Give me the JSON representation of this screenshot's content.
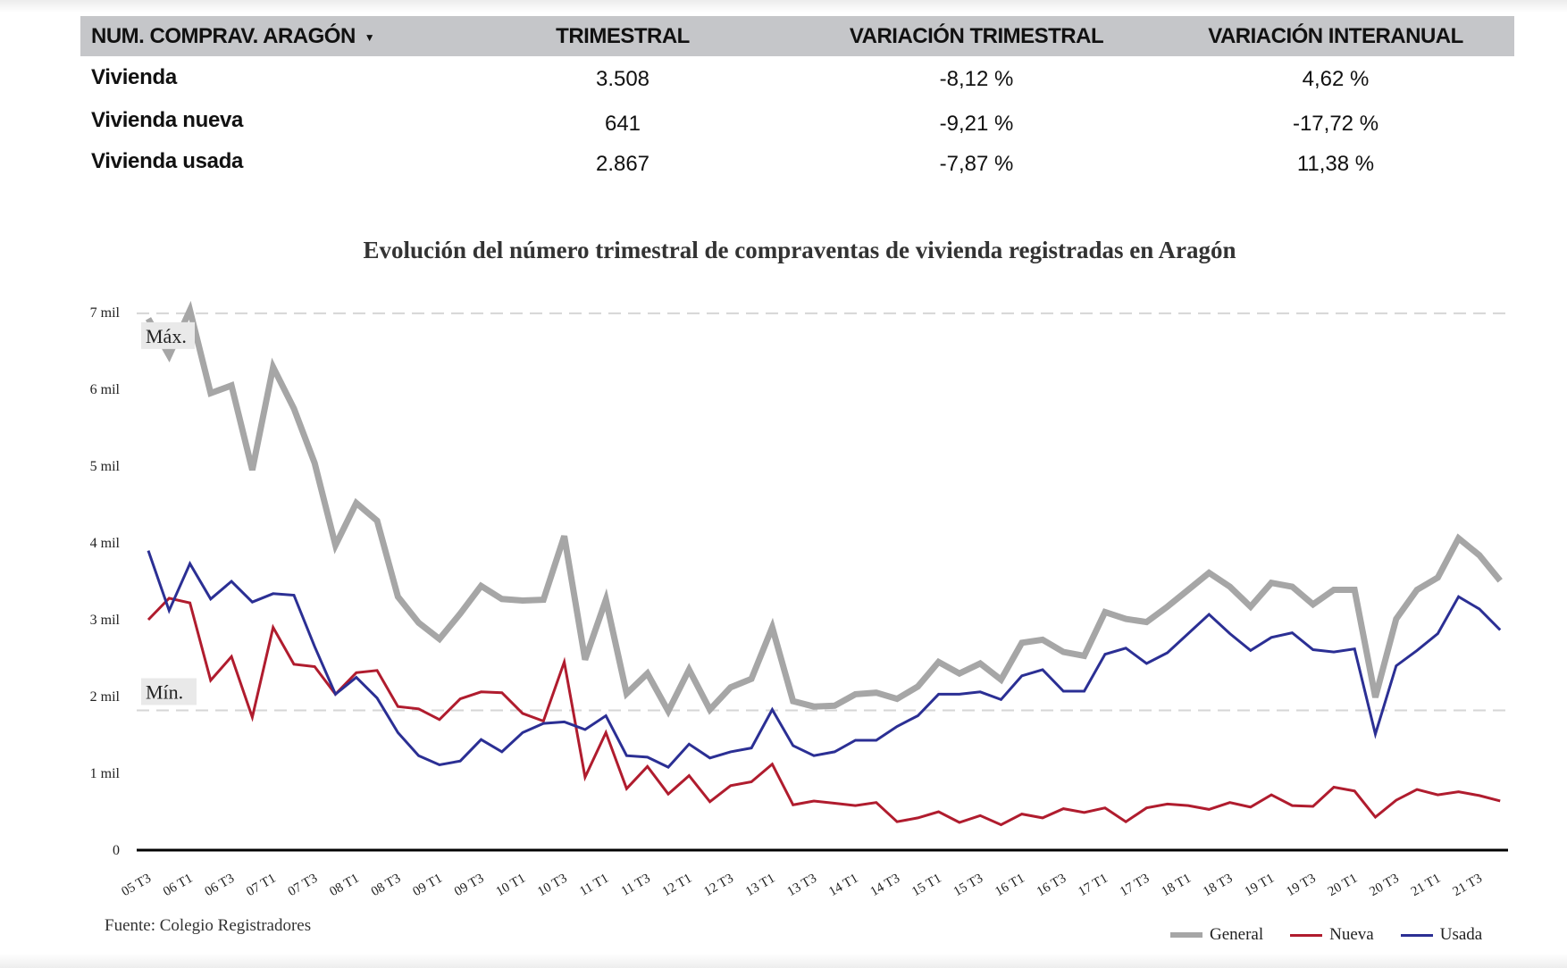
{
  "table": {
    "headers": [
      "NUM. COMPRAV. ARAGÓN",
      "TRIMESTRAL",
      "VARIACIÓN TRIMESTRAL",
      "VARIACIÓN INTERANUAL"
    ],
    "dropdown_icon": "caret-down-icon",
    "rows": [
      {
        "label": "Vivienda",
        "trimestral": "3.508",
        "var_trim": "-8,12 %",
        "var_inter": "4,62 %"
      },
      {
        "label": "Vivienda nueva",
        "trimestral": "641",
        "var_trim": "-9,21 %",
        "var_inter": "-17,72 %"
      },
      {
        "label": "Vivienda usada",
        "trimestral": "2.867",
        "var_trim": "-7,87 %",
        "var_inter": "11,38 %"
      }
    ]
  },
  "source": "Fuente: Colegio Registradores",
  "chart_data": {
    "type": "line",
    "title": "Evolución del número trimestral de compraventas de vivienda registradas en Aragón",
    "xlabel": "",
    "ylabel": "",
    "ylim": [
      0,
      7000
    ],
    "y_ticks": [
      {
        "v": 0,
        "label": "0"
      },
      {
        "v": 1000,
        "label": "1 mil"
      },
      {
        "v": 2000,
        "label": "2 mil"
      },
      {
        "v": 3000,
        "label": "3 mil"
      },
      {
        "v": 4000,
        "label": "4 mil"
      },
      {
        "v": 5000,
        "label": "5 mil"
      },
      {
        "v": 6000,
        "label": "6 mil"
      },
      {
        "v": 7000,
        "label": "7 mil"
      }
    ],
    "x_tick_labels": [
      "05 T3",
      "06 T1",
      "06 T3",
      "07 T1",
      "07 T3",
      "08 T1",
      "08 T3",
      "09 T1",
      "09 T3",
      "10 T1",
      "10 T3",
      "11 T1",
      "11 T3",
      "12 T1",
      "12 T3",
      "13 T1",
      "13 T3",
      "14 T1",
      "14 T3",
      "15 T1",
      "15 T3",
      "16 T1",
      "16 T3",
      "17 T1",
      "17 T3",
      "18 T1",
      "18 T3",
      "19 T1",
      "19 T3",
      "20 T1",
      "20 T3",
      "21 T1",
      "21 T3"
    ],
    "reference_lines": [
      {
        "label": "Máx.",
        "value": 6990
      },
      {
        "label": "Mín.",
        "value": 1820
      }
    ],
    "grid": false,
    "legend": "bottom-right",
    "series": [
      {
        "name": "General",
        "color": "#a6a6a6",
        "values": [
          6920,
          6440,
          7030,
          5950,
          6050,
          4950,
          6290,
          5750,
          5040,
          3970,
          4520,
          4290,
          3300,
          2960,
          2750,
          3080,
          3440,
          3270,
          3250,
          3260,
          4090,
          2480,
          3260,
          2040,
          2300,
          1810,
          2350,
          1830,
          2120,
          2230,
          2900,
          1940,
          1870,
          1880,
          2030,
          2050,
          1970,
          2130,
          2450,
          2300,
          2430,
          2220,
          2700,
          2740,
          2580,
          2530,
          3100,
          3010,
          2970,
          3170,
          3390,
          3610,
          3430,
          3170,
          3480,
          3430,
          3200,
          3390,
          3390,
          1990,
          3010,
          3390,
          3550,
          4060,
          3840,
          3508
        ]
      },
      {
        "name": "Nueva",
        "color": "#b01c2e",
        "values": [
          3000,
          3280,
          3220,
          2210,
          2520,
          1730,
          2900,
          2420,
          2390,
          2030,
          2310,
          2340,
          1870,
          1840,
          1700,
          1970,
          2060,
          2050,
          1780,
          1680,
          2450,
          950,
          1530,
          800,
          1090,
          730,
          970,
          630,
          840,
          890,
          1120,
          590,
          640,
          610,
          580,
          620,
          370,
          420,
          500,
          360,
          450,
          330,
          470,
          420,
          540,
          490,
          550,
          370,
          550,
          600,
          580,
          530,
          620,
          560,
          720,
          580,
          570,
          820,
          770,
          430,
          650,
          790,
          720,
          760,
          710,
          641
        ]
      },
      {
        "name": "Usada",
        "color": "#2b2f94",
        "values": [
          3900,
          3120,
          3730,
          3270,
          3500,
          3230,
          3340,
          3320,
          2650,
          2030,
          2250,
          1980,
          1530,
          1230,
          1110,
          1160,
          1440,
          1280,
          1530,
          1650,
          1670,
          1570,
          1750,
          1230,
          1210,
          1080,
          1380,
          1200,
          1280,
          1330,
          1830,
          1360,
          1230,
          1280,
          1430,
          1430,
          1610,
          1750,
          2030,
          2030,
          2060,
          1960,
          2270,
          2350,
          2070,
          2070,
          2550,
          2630,
          2430,
          2570,
          2820,
          3070,
          2820,
          2600,
          2770,
          2830,
          2610,
          2580,
          2620,
          1510,
          2400,
          2600,
          2820,
          3300,
          3140,
          2867
        ]
      }
    ]
  }
}
